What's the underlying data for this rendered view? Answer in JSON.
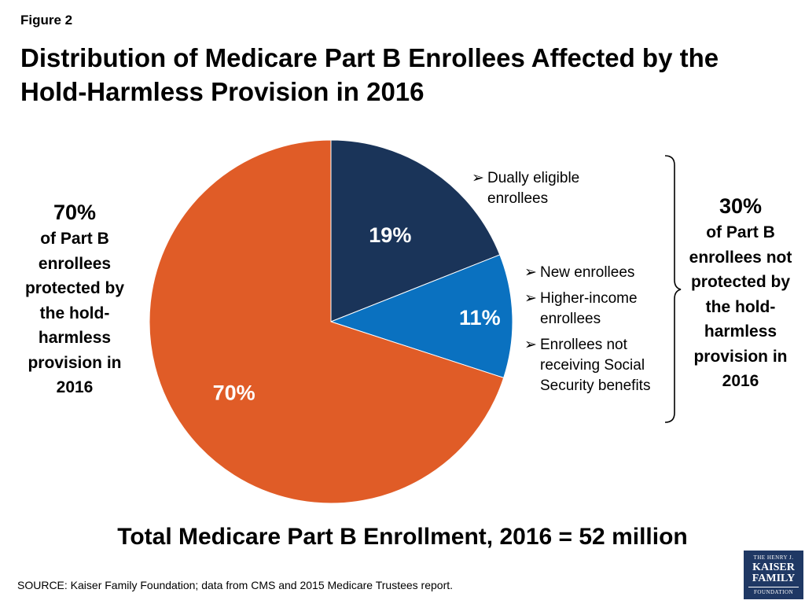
{
  "figure_label": "Figure 2",
  "title": "Distribution of Medicare Part B Enrollees Affected by the Hold-Harmless Provision in 2016",
  "left_callout": {
    "pct": "70%",
    "text": "of Part B enrollees protected by the hold-harmless provision in 2016"
  },
  "right_callout": {
    "pct": "30%",
    "text": "of Part B enrollees not protected by the hold-harmless provision in 2016"
  },
  "groups": {
    "dual": [
      {
        "arrow": "➢",
        "label": "Dually eligible enrollees"
      }
    ],
    "other": [
      {
        "arrow": "➢",
        "label": "New enrollees"
      },
      {
        "arrow": "➢",
        "label": "Higher-income enrollees"
      },
      {
        "arrow": "➢",
        "label": "Enrollees not receiving Social Security benefits"
      }
    ]
  },
  "total": "Total Medicare Part B Enrollment, 2016 = 52 million",
  "source": "SOURCE: Kaiser Family Foundation; data from CMS and 2015 Medicare Trustees report.",
  "logo": {
    "line1": "THE HENRY J.",
    "line2": "KAISER",
    "line3": "FAMILY",
    "line4": "FOUNDATION"
  },
  "colors": {
    "protected": "#e05c27",
    "dual": "#1a3459",
    "other": "#0a71c0",
    "label_on_slice": "#ffffff",
    "brace": "#000000"
  },
  "chart_data": {
    "type": "pie",
    "title": "",
    "start": "12 o'clock",
    "direction": "clockwise",
    "slices": [
      {
        "value": 19,
        "label": "19%",
        "color": "#1a3459"
      },
      {
        "value": 11,
        "label": "11%",
        "color": "#0a71c0"
      },
      {
        "value": 70,
        "label": "70%",
        "color": "#e05c27"
      }
    ]
  }
}
